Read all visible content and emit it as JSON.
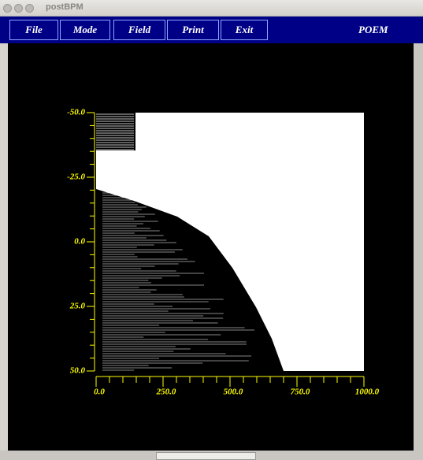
{
  "window": {
    "title": "postBPM"
  },
  "menu": {
    "items": [
      "File",
      "Mode",
      "Field",
      "Print",
      "Exit"
    ],
    "label": "POEM"
  },
  "plot": {
    "y_axis": {
      "ticks": [
        "-50.0",
        "-25.0",
        "0.0",
        "25.0",
        "50.0"
      ]
    },
    "x_axis": {
      "ticks": [
        "0.0",
        "250.0",
        "500.0",
        "750.0",
        "1000.0"
      ]
    }
  }
}
